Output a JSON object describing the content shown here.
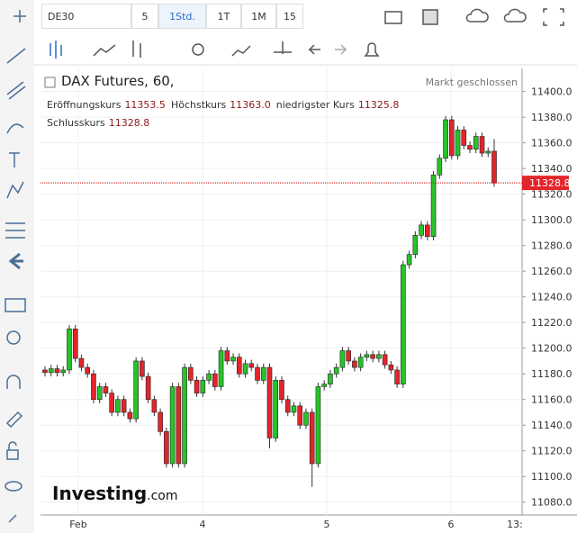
{
  "ui": {
    "symbol": "DE30",
    "intervals": [
      "5",
      "1Std.",
      "1T",
      "1M",
      "15"
    ],
    "status": "Markt geschlossen",
    "watermark_main": "Investing",
    "watermark_suffix": ".com"
  },
  "chart_data": {
    "type": "candlestick",
    "title": "DAX Futures, 60,",
    "legend": [
      {
        "label": "Eröffnungskurs",
        "value": "11353.5"
      },
      {
        "label": "Höchstkurs",
        "value": "11363.0"
      },
      {
        "label": "niedrigster Kurs",
        "value": "11325.8"
      },
      {
        "label": "Schlusskurs",
        "value": "11328.8"
      }
    ],
    "xtick_labels": [
      "Feb",
      "4",
      "5",
      "6",
      "13:"
    ],
    "up_color": "#27c427",
    "down_color": "#e3252b",
    "open": [
      11183,
      11181,
      11184,
      11181,
      11183,
      11215,
      11192,
      11185,
      11180,
      11160,
      11170,
      11165,
      11150,
      11160,
      11150,
      11145,
      11190,
      11178,
      11160,
      11150,
      11135,
      11110,
      11170,
      11110,
      11185,
      11175,
      11165,
      11175,
      11180,
      11170,
      11198,
      11190,
      11193,
      11180,
      11188,
      11185,
      11175,
      11185,
      11130,
      11175,
      11160,
      11150,
      11155,
      11140,
      11150,
      11110,
      11170,
      11172,
      11180,
      11185,
      11198,
      11190,
      11185,
      11193,
      11195,
      11192,
      11195,
      11187,
      11183,
      11172,
      11265,
      11273,
      11288,
      11296,
      11287,
      11335,
      11348,
      11378,
      11350,
      11370,
      11358,
      11355,
      11365,
      11352,
      11353.5
    ],
    "high": [
      11186,
      11187,
      11187,
      11186,
      11218,
      11218,
      11195,
      11188,
      11183,
      11173,
      11173,
      11168,
      11163,
      11163,
      11153,
      11193,
      11193,
      11181,
      11163,
      11153,
      11138,
      11173,
      11173,
      11188,
      11188,
      11178,
      11178,
      11183,
      11183,
      11201,
      11201,
      11196,
      11196,
      11191,
      11191,
      11188,
      11188,
      11188,
      11178,
      11178,
      11163,
      11158,
      11158,
      11153,
      11153,
      11173,
      11175,
      11183,
      11188,
      11201,
      11201,
      11193,
      11196,
      11198,
      11198,
      11198,
      11198,
      11190,
      11186,
      11268,
      11276,
      11291,
      11299,
      11299,
      11338,
      11351,
      11381,
      11381,
      11373,
      11373,
      11361,
      11368,
      11368,
      11356.5,
      11363
    ],
    "low": [
      11178,
      11178,
      11178,
      11178,
      11180,
      11189,
      11182,
      11177,
      11157,
      11157,
      11162,
      11147,
      11147,
      11147,
      11142,
      11142,
      11175,
      11157,
      11147,
      11132,
      11107,
      11107,
      11107,
      11107,
      11172,
      11162,
      11162,
      11172,
      11167,
      11167,
      11187,
      11187,
      11177,
      11177,
      11182,
      11172,
      11172,
      11122,
      11127,
      11157,
      11147,
      11147,
      11137,
      11137,
      11092,
      11107,
      11167,
      11169,
      11177,
      11182,
      11187,
      11182,
      11182,
      11190,
      11189,
      11189,
      11184,
      11180,
      11169,
      11169,
      11262,
      11270,
      11285,
      11284,
      11284,
      11332,
      11345,
      11347,
      11347,
      11355,
      11352,
      11352,
      11349,
      11349,
      11325.8
    ],
    "close": [
      11181,
      11184,
      11181,
      11183,
      11215,
      11192,
      11185,
      11180,
      11160,
      11170,
      11165,
      11150,
      11160,
      11150,
      11145,
      11190,
      11178,
      11160,
      11150,
      11135,
      11110,
      11170,
      11110,
      11185,
      11175,
      11165,
      11175,
      11180,
      11170,
      11198,
      11190,
      11193,
      11180,
      11188,
      11185,
      11175,
      11185,
      11130,
      11175,
      11160,
      11150,
      11155,
      11140,
      11150,
      11110,
      11170,
      11172,
      11180,
      11185,
      11198,
      11190,
      11185,
      11193,
      11195,
      11192,
      11195,
      11187,
      11183,
      11172,
      11265,
      11273,
      11288,
      11296,
      11287,
      11335,
      11348,
      11378,
      11350,
      11370,
      11358,
      11355,
      11365,
      11352,
      11353.5,
      11328.8
    ],
    "ylim": [
      11070,
      11418
    ],
    "yticks": [
      {
        "value": 11080,
        "label": "11080.0"
      },
      {
        "value": 11100,
        "label": "11100.0"
      },
      {
        "value": 11120,
        "label": "11120.0"
      },
      {
        "value": 11140,
        "label": "11140.0"
      },
      {
        "value": 11160,
        "label": "11160.0"
      },
      {
        "value": 11180,
        "label": "11180.0"
      },
      {
        "value": 11200,
        "label": "11200.0"
      },
      {
        "value": 11220,
        "label": "11220.0"
      },
      {
        "value": 11240,
        "label": "11240.0"
      },
      {
        "value": 11260,
        "label": "11260.0"
      },
      {
        "value": 11280,
        "label": "11280.0"
      },
      {
        "value": 11300,
        "label": "11300.0"
      },
      {
        "value": 11320,
        "label": "11320.0"
      },
      {
        "value": 11340,
        "label": "11340.0"
      },
      {
        "value": 11360,
        "label": "11360.0"
      },
      {
        "value": 11380,
        "label": "11380.0"
      },
      {
        "value": 11400,
        "label": "11400.0"
      }
    ],
    "grid": true
  }
}
